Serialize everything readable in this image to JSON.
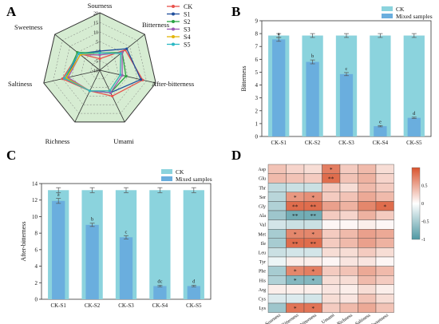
{
  "colors": {
    "radar_fill": "#d6ecd2",
    "ck": "#8bd3dd",
    "mixed": "#6aaede",
    "heat_neg": "#4f98a3",
    "heat_zero": "#ffffff",
    "heat_pos": "#d9532d",
    "series": {
      "CK": "#e8514c",
      "S1": "#1f4e9c",
      "S2": "#2ba343",
      "S3": "#9b59b6",
      "S4": "#e3b50a",
      "S5": "#2ab8c4"
    }
  },
  "chart_data": [
    {
      "panel": "A",
      "type": "radar",
      "axes": [
        "Sourness",
        "Bitterness",
        "After-bitterness",
        "Umami",
        "Richness",
        "Saltiness",
        "Sweetness"
      ],
      "rmin": -10,
      "rmax": 20,
      "ticks": [
        -10,
        -5,
        0,
        5,
        10,
        15,
        20
      ],
      "series": [
        {
          "name": "CK",
          "values": [
            -4,
            7,
            13,
            5,
            2,
            10,
            4
          ]
        },
        {
          "name": "S1",
          "values": [
            0,
            8,
            12,
            3,
            2,
            8,
            4
          ]
        },
        {
          "name": "S2",
          "values": [
            -1,
            5,
            4,
            3,
            2,
            8,
            5
          ]
        },
        {
          "name": "S3",
          "values": [
            -2,
            5,
            2,
            3,
            2,
            7,
            3
          ]
        },
        {
          "name": "S4",
          "values": [
            -1,
            4,
            1,
            2,
            2,
            8,
            3
          ]
        },
        {
          "name": "S5",
          "values": [
            -1,
            4,
            1,
            2,
            2,
            9,
            4
          ]
        }
      ]
    },
    {
      "panel": "B",
      "type": "bar",
      "categories": [
        "CK-S1",
        "CK-S2",
        "CK-S3",
        "CK-S4",
        "CK-S5"
      ],
      "ylabel": "Bitterness",
      "ylim": [
        0,
        9
      ],
      "yticks": [
        0,
        1,
        2,
        3,
        4,
        5,
        6,
        7,
        8,
        9
      ],
      "legend": [
        "CK",
        "Mixed samples"
      ],
      "series": [
        {
          "name": "CK",
          "values": [
            7.85,
            7.85,
            7.85,
            7.85,
            7.85
          ],
          "errors": [
            0.15,
            0.15,
            0.15,
            0.15,
            0.15
          ]
        },
        {
          "name": "Mixed samples",
          "values": [
            7.55,
            5.8,
            4.85,
            0.8,
            1.45
          ],
          "errors": [
            0.15,
            0.15,
            0.12,
            0.05,
            0.05
          ],
          "letters": [
            "a",
            "b",
            "c",
            "e",
            "d"
          ]
        }
      ]
    },
    {
      "panel": "C",
      "type": "bar",
      "categories": [
        "CK-S1",
        "CK-S2",
        "CK-S3",
        "CK-S4",
        "CK-S5"
      ],
      "ylabel": "After-bitterness",
      "ylim": [
        0,
        14
      ],
      "yticks": [
        0,
        2,
        4,
        6,
        8,
        10,
        12,
        14
      ],
      "legend": [
        "CK",
        "Mixed samples"
      ],
      "series": [
        {
          "name": "CK",
          "values": [
            13.2,
            13.2,
            13.2,
            13.2,
            13.2
          ],
          "errors": [
            0.3,
            0.3,
            0.3,
            0.3,
            0.3
          ]
        },
        {
          "name": "Mixed samples",
          "values": [
            11.9,
            9.0,
            7.5,
            1.6,
            1.6
          ],
          "errors": [
            0.3,
            0.2,
            0.2,
            0.1,
            0.1
          ],
          "letters": [
            "a",
            "b",
            "c",
            "dc",
            "d"
          ]
        }
      ]
    },
    {
      "panel": "D",
      "type": "heatmap",
      "rows": [
        "Asp",
        "Glu",
        "Thr",
        "Ser",
        "Gly",
        "Ala",
        "Val",
        "Met",
        "Ile",
        "Leu",
        "Tyr",
        "Phe",
        "His",
        "Arg",
        "Cys",
        "Lys"
      ],
      "cols": [
        "Sourness",
        "Bitterness",
        "After-bitterness",
        "Umami",
        "Richness",
        "Saltiness",
        "Sweetness"
      ],
      "vmin": -1,
      "vmax": 1,
      "colorbar_ticks": [
        0.5,
        0,
        -0.5,
        -1
      ],
      "values": [
        [
          0.35,
          0.25,
          0.2,
          0.75,
          0.3,
          0.4,
          0.2
        ],
        [
          0.4,
          0.35,
          0.3,
          0.85,
          0.35,
          0.45,
          0.25
        ],
        [
          -0.35,
          -0.3,
          -0.3,
          0.3,
          0.2,
          0.4,
          0.3
        ],
        [
          -0.4,
          0.6,
          0.65,
          0.3,
          0.35,
          0.5,
          0.4
        ],
        [
          -0.45,
          0.85,
          0.85,
          0.55,
          0.45,
          0.7,
          0.85
        ],
        [
          -0.55,
          -0.8,
          -0.8,
          0.3,
          0.25,
          0.45,
          0.3
        ],
        [
          -0.25,
          -0.3,
          -0.3,
          0.05,
          0.05,
          0.1,
          0.05
        ],
        [
          -0.5,
          0.7,
          0.7,
          0.3,
          0.4,
          0.55,
          0.5
        ],
        [
          -0.5,
          0.85,
          0.85,
          0.3,
          0.4,
          0.55,
          0.45
        ],
        [
          -0.3,
          -0.25,
          -0.25,
          0.2,
          0.2,
          0.3,
          0.2
        ],
        [
          -0.1,
          0.1,
          0.1,
          0.05,
          0.15,
          0.15,
          0.05
        ],
        [
          -0.5,
          0.7,
          0.75,
          0.3,
          0.35,
          0.5,
          0.4
        ],
        [
          -0.45,
          -0.7,
          -0.7,
          0.2,
          0.2,
          0.4,
          0.3
        ],
        [
          0.1,
          0.1,
          0.1,
          0.15,
          0.1,
          0.2,
          0.1
        ],
        [
          -0.2,
          -0.2,
          -0.25,
          0.2,
          0.15,
          0.35,
          0.2
        ],
        [
          -0.55,
          0.8,
          0.8,
          0.3,
          0.4,
          0.5,
          0.35
        ]
      ],
      "significance": [
        [
          "",
          "",
          "",
          "*",
          "",
          "",
          ""
        ],
        [
          "",
          "",
          "",
          "**",
          "",
          "",
          ""
        ],
        [
          "",
          "",
          "",
          "",
          "",
          "",
          ""
        ],
        [
          "",
          "*",
          "*",
          "",
          "",
          "",
          ""
        ],
        [
          "",
          "**",
          "**",
          "",
          "",
          "",
          "*"
        ],
        [
          "",
          "**",
          "**",
          "",
          "",
          "",
          ""
        ],
        [
          "",
          "",
          "",
          "",
          "",
          "",
          ""
        ],
        [
          "",
          "*",
          "*",
          "",
          "",
          "",
          ""
        ],
        [
          "",
          "**",
          "**",
          "",
          "",
          "",
          ""
        ],
        [
          "",
          "",
          "",
          "",
          "",
          "",
          ""
        ],
        [
          "",
          "",
          "",
          "",
          "",
          "",
          ""
        ],
        [
          "",
          "*",
          "*",
          "",
          "",
          "",
          ""
        ],
        [
          "",
          "*",
          "*",
          "",
          "",
          "",
          ""
        ],
        [
          "",
          "",
          "",
          "",
          "",
          "",
          ""
        ],
        [
          "",
          "",
          "",
          "",
          "",
          "",
          ""
        ],
        [
          "",
          "*",
          "*",
          "",
          "",
          "",
          ""
        ]
      ]
    }
  ]
}
